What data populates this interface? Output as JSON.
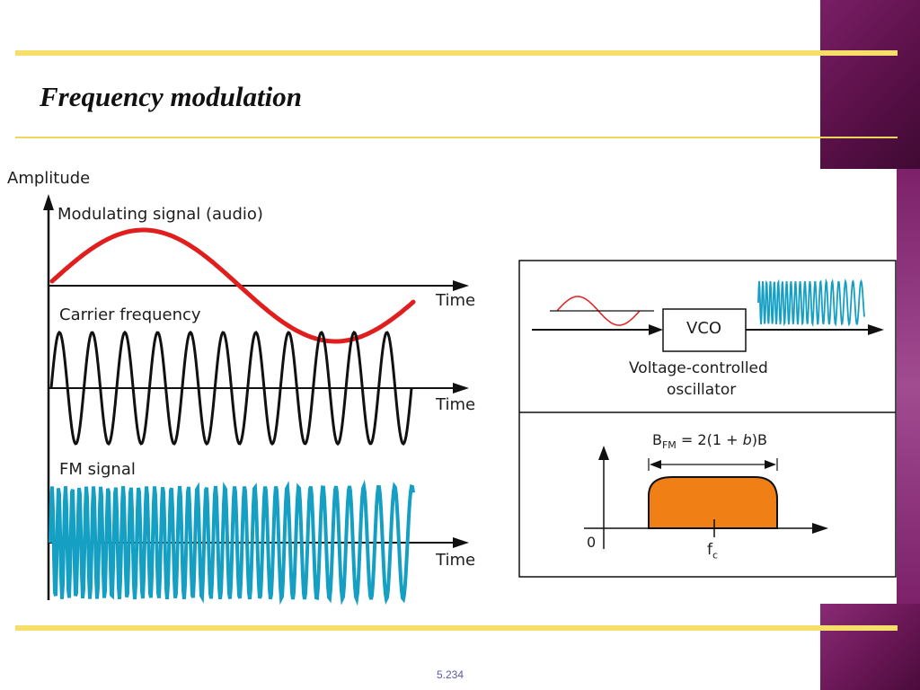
{
  "slide": {
    "title": "Frequency modulation",
    "page_number": "5.234"
  },
  "left_diagram": {
    "y_axis_label": "Amplitude",
    "modulating_label": "Modulating signal (audio)",
    "carrier_label": "Carrier frequency",
    "fm_label": "FM signal",
    "time_label_1": "Time",
    "time_label_2": "Time",
    "time_label_3": "Time",
    "colors": {
      "modulating": "#e01e1e",
      "carrier": "#111111",
      "fm": "#149fc3"
    }
  },
  "vco_panel": {
    "box_label": "VCO",
    "caption_line1": "Voltage-controlled",
    "caption_line2": "oscillator"
  },
  "spectrum_panel": {
    "bandwidth_formula": "B",
    "bandwidth_sub": "FM",
    "bandwidth_rest_1": " = 2(1 + ",
    "bandwidth_italic": "b",
    "bandwidth_rest_2": ")B",
    "origin_label": "0",
    "center_label": "f",
    "center_sub": "c",
    "fill_color": "#f07f16"
  }
}
